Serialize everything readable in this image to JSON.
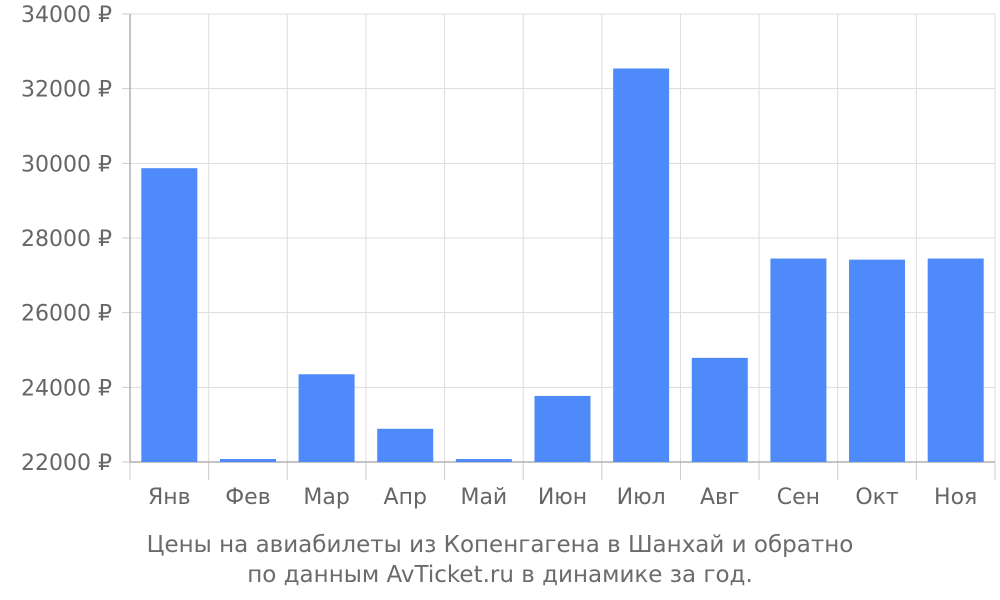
{
  "chart_data": {
    "type": "bar",
    "categories": [
      "Янв",
      "Фев",
      "Мар",
      "Апр",
      "Май",
      "Июн",
      "Июл",
      "Авг",
      "Сен",
      "Окт",
      "Ноя"
    ],
    "values": [
      29870,
      22080,
      24350,
      22890,
      22080,
      23770,
      32540,
      24790,
      27450,
      27420,
      27450
    ],
    "ylim": [
      22000,
      34000
    ],
    "yticks": [
      22000,
      24000,
      26000,
      28000,
      30000,
      32000,
      34000
    ],
    "ytick_suffix": " ₽",
    "grid": true,
    "bar_color": "#4e8af9",
    "grid_color": "#dddddd",
    "text_color": "#666666"
  },
  "caption": {
    "line1": "Цены на авиабилеты из Копенгагена в Шанхай и обратно",
    "line2": "по данным AvTicket.ru в динамике за год."
  }
}
